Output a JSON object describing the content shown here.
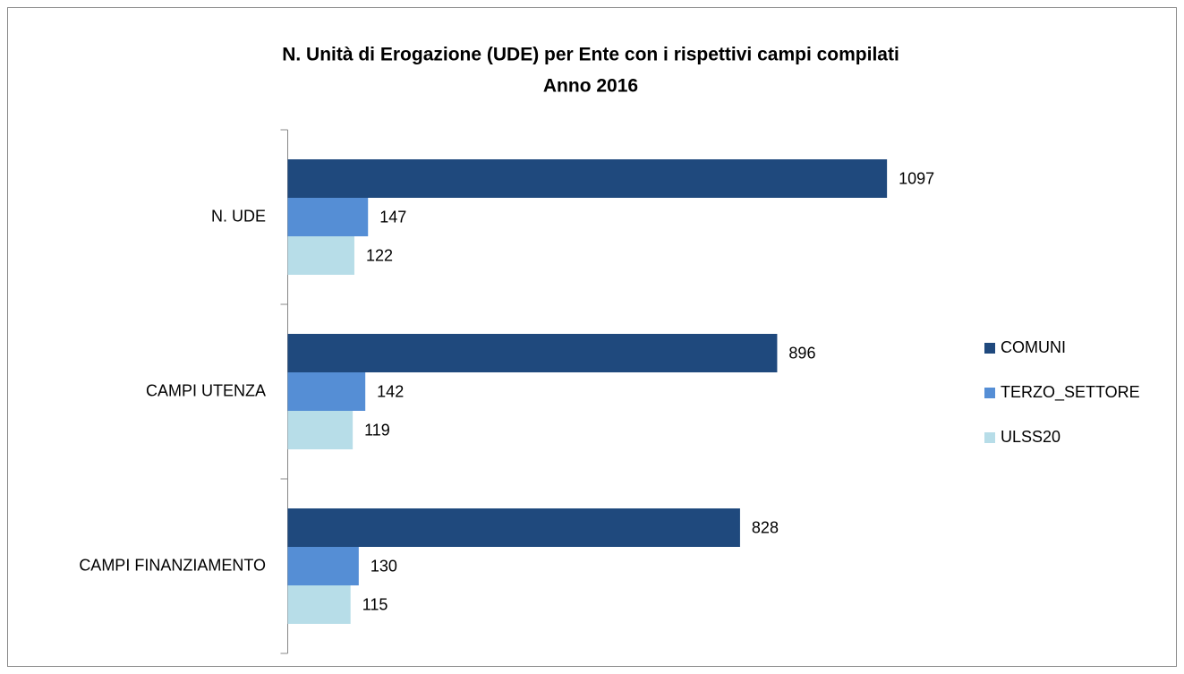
{
  "chart_data": {
    "type": "hbar",
    "title": [
      "N. Unità di Erogazione (UDE) per Ente con i rispettivi campi compilati",
      "Anno 2016"
    ],
    "categories": [
      "N. UDE",
      "CAMPI UTENZA",
      "CAMPI FINANZIAMENTO"
    ],
    "series": [
      {
        "name": "COMUNI",
        "color": "#1f497d",
        "values": [
          1097,
          896,
          828
        ]
      },
      {
        "name": "TERZO_SETTORE",
        "color": "#558ed5",
        "values": [
          147,
          142,
          130
        ]
      },
      {
        "name": "ULSS20",
        "color": "#b7dde8",
        "values": [
          122,
          119,
          115
        ]
      }
    ],
    "xlim": [
      0,
      1200
    ],
    "legend": "right"
  }
}
